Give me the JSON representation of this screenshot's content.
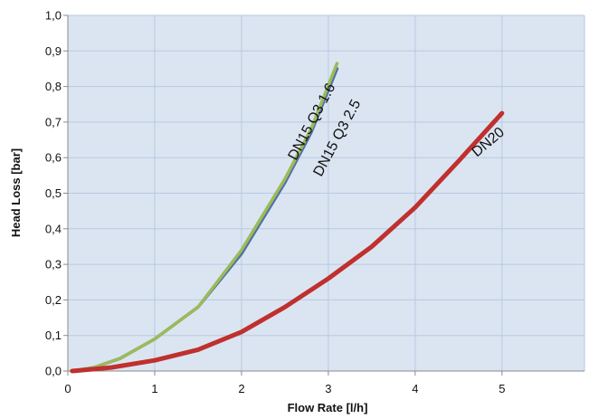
{
  "chart_data": {
    "type": "line",
    "xlabel": "Flow Rate [l/h]",
    "ylabel": "Head Loss [bar]",
    "xlim": [
      0,
      5.95
    ],
    "ylim": [
      0,
      1.0
    ],
    "x_ticks": [
      "0",
      "1",
      "2",
      "3",
      "4",
      "5"
    ],
    "y_ticks": [
      "0,0",
      "0,1",
      "0,2",
      "0,3",
      "0,4",
      "0,5",
      "0,6",
      "0,7",
      "0,8",
      "0,9",
      "1,0"
    ],
    "grid": true,
    "background_color": "#dbe5f1",
    "grid_color": "#b7c9e2",
    "series": [
      {
        "name": "DN15 Q3 2.5",
        "color": "#4f6fa8",
        "points": [
          [
            0.05,
            0.0
          ],
          [
            0.3,
            0.01
          ],
          [
            0.6,
            0.035
          ],
          [
            1.0,
            0.09
          ],
          [
            1.5,
            0.18
          ],
          [
            2.0,
            0.33
          ],
          [
            2.5,
            0.53
          ],
          [
            2.8,
            0.67
          ],
          [
            3.1,
            0.85
          ]
        ]
      },
      {
        "name": "DN15 Q3 1.6",
        "color": "#9bbb59",
        "points": [
          [
            0.05,
            0.0
          ],
          [
            0.3,
            0.01
          ],
          [
            0.6,
            0.035
          ],
          [
            1.0,
            0.09
          ],
          [
            1.5,
            0.18
          ],
          [
            2.0,
            0.34
          ],
          [
            2.5,
            0.54
          ],
          [
            2.8,
            0.68
          ],
          [
            3.1,
            0.865
          ]
        ]
      },
      {
        "name": "DN20",
        "color": "#c0302e",
        "points": [
          [
            0.05,
            0.0
          ],
          [
            0.5,
            0.01
          ],
          [
            1.0,
            0.03
          ],
          [
            1.5,
            0.06
          ],
          [
            2.0,
            0.11
          ],
          [
            2.5,
            0.18
          ],
          [
            3.0,
            0.26
          ],
          [
            3.5,
            0.35
          ],
          [
            4.0,
            0.46
          ],
          [
            4.5,
            0.59
          ],
          [
            5.0,
            0.725
          ]
        ]
      }
    ]
  }
}
